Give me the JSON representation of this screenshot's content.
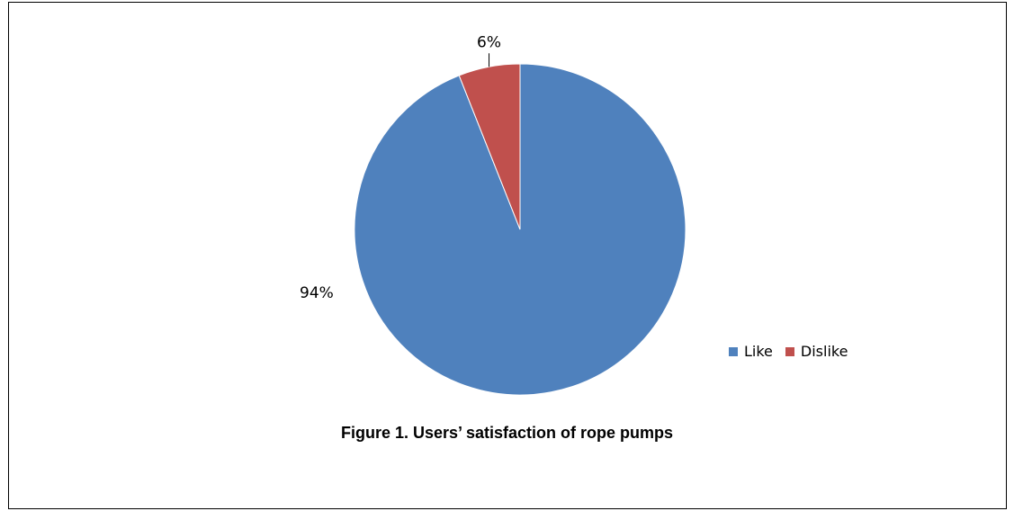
{
  "chart_data": {
    "type": "pie",
    "categories": [
      "Like",
      "Dislike"
    ],
    "values": [
      94,
      6
    ],
    "data_labels": [
      "94%",
      "6%"
    ],
    "colors": [
      "#4f81bd",
      "#c0504d"
    ],
    "legend_position": "right",
    "title": "Figure 1. Users’ satisfaction of rope pumps"
  }
}
